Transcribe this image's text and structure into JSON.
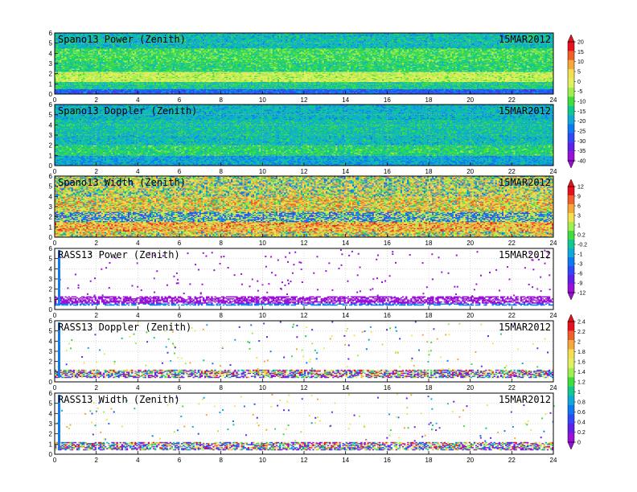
{
  "chart_data": [
    {
      "type": "heatmap",
      "title": "Spano13 Power (Zenith)",
      "date": "15MAR2012",
      "xlim": [
        0,
        24
      ],
      "ylim": [
        0,
        6
      ],
      "xticks": [
        "0",
        "2",
        "4",
        "6",
        "8",
        "10",
        "12",
        "14",
        "16",
        "18",
        "20",
        "22",
        "24"
      ],
      "yticks": [
        "0",
        "1",
        "2",
        "3",
        "4",
        "5",
        "6"
      ],
      "colorbar_group": 0,
      "field_bands": [
        {
          "z0": 0.0,
          "z1": 0.5,
          "value": -25
        },
        {
          "z0": 0.5,
          "z1": 1.2,
          "value": -12
        },
        {
          "z0": 1.2,
          "z1": 2.2,
          "value": 0
        },
        {
          "z0": 2.2,
          "z1": 3.2,
          "value": -10
        },
        {
          "z0": 3.2,
          "z1": 4.5,
          "value": -8
        },
        {
          "z0": 4.5,
          "z1": 6.0,
          "value": -15
        }
      ]
    },
    {
      "type": "heatmap",
      "title": "Spano13 Doppler (Zenith)",
      "date": "15MAR2012",
      "xlim": [
        0,
        24
      ],
      "ylim": [
        0,
        6
      ],
      "xticks": [
        "0",
        "2",
        "4",
        "6",
        "8",
        "10",
        "12",
        "14",
        "16",
        "18",
        "20",
        "22",
        "24"
      ],
      "yticks": [
        "0",
        "1",
        "2",
        "3",
        "4",
        "5",
        "6"
      ],
      "colorbar_group": 0,
      "field_bands": [
        {
          "z0": 0.0,
          "z1": 1.0,
          "value": -18
        },
        {
          "z0": 1.0,
          "z1": 2.0,
          "value": -10
        },
        {
          "z0": 2.0,
          "z1": 3.0,
          "value": -15
        },
        {
          "z0": 3.0,
          "z1": 4.5,
          "value": -14
        },
        {
          "z0": 4.5,
          "z1": 6.0,
          "value": -16
        }
      ]
    },
    {
      "type": "heatmap",
      "title": "Spano13 Width (Zenith)",
      "date": "15MAR2012",
      "xlim": [
        0,
        24
      ],
      "ylim": [
        0,
        6
      ],
      "xticks": [
        "0",
        "2",
        "4",
        "6",
        "8",
        "10",
        "12",
        "14",
        "16",
        "18",
        "20",
        "22",
        "24"
      ],
      "yticks": [
        "0",
        "1",
        "2",
        "3",
        "4",
        "5",
        "6"
      ],
      "colorbar_group": 1,
      "field_bands": [
        {
          "z0": 0.0,
          "z1": 0.6,
          "value": 4
        },
        {
          "z0": 0.6,
          "z1": 1.5,
          "value": 7
        },
        {
          "z0": 1.5,
          "z1": 2.5,
          "value": 0
        },
        {
          "z0": 2.5,
          "z1": 4.0,
          "value": 5
        },
        {
          "z0": 4.0,
          "z1": 6.0,
          "value": 3
        }
      ]
    },
    {
      "type": "heatmap",
      "title": "RASS13 Power (Zenith)",
      "date": "15MAR2012",
      "xlim": [
        0,
        24
      ],
      "ylim": [
        0,
        6
      ],
      "xticks": [
        "0",
        "2",
        "4",
        "6",
        "8",
        "10",
        "12",
        "14",
        "16",
        "18",
        "20",
        "22",
        "24"
      ],
      "yticks": [
        "0",
        "1",
        "2",
        "3",
        "4",
        "5",
        "6"
      ],
      "colorbar_group": 1,
      "field_bands": [
        {
          "z0": 0.4,
          "z1": 0.6,
          "value": -2
        },
        {
          "z0": 0.6,
          "z1": 1.3,
          "value": -11
        }
      ]
    },
    {
      "type": "heatmap",
      "title": "RASS13 Doppler (Zenith)",
      "date": "15MAR2012",
      "xlim": [
        0,
        24
      ],
      "ylim": [
        0,
        6
      ],
      "xticks": [
        "0",
        "2",
        "4",
        "6",
        "8",
        "10",
        "12",
        "14",
        "16",
        "18",
        "20",
        "22",
        "24"
      ],
      "yticks": [
        "0",
        "1",
        "2",
        "3",
        "4",
        "5",
        "6"
      ],
      "colorbar_group": 2,
      "field_bands": [
        {
          "z0": 0.4,
          "z1": 0.6,
          "value": 0.7
        },
        {
          "z0": 0.6,
          "z1": 1.2,
          "value": 1.2
        }
      ]
    },
    {
      "type": "heatmap",
      "title": "RASS13 Width (Zenith)",
      "date": "15MAR2012",
      "xlim": [
        0,
        24
      ],
      "ylim": [
        0,
        6
      ],
      "xticks": [
        "0",
        "2",
        "4",
        "6",
        "8",
        "10",
        "12",
        "14",
        "16",
        "18",
        "20",
        "22",
        "24"
      ],
      "yticks": [
        "0",
        "1",
        "2",
        "3",
        "4",
        "5",
        "6"
      ],
      "colorbar_group": 2,
      "field_bands": [
        {
          "z0": 0.4,
          "z1": 0.6,
          "value": 0.7
        },
        {
          "z0": 0.6,
          "z1": 1.2,
          "value": 1.2
        }
      ]
    }
  ],
  "colorbars": [
    {
      "labels": [
        "20",
        "15",
        "10",
        "5",
        "0",
        "-5",
        "-10",
        "-15",
        "-20",
        "-25",
        "-30",
        "-35",
        "-40"
      ],
      "colors": [
        "#e8101e",
        "#f0602a",
        "#f6a83a",
        "#f2e050",
        "#e2f060",
        "#a0ee50",
        "#40dc40",
        "#10c890",
        "#10a8d8",
        "#1078f0",
        "#3048f8",
        "#6020e8",
        "#9a10d8"
      ]
    },
    {
      "labels": [
        "12",
        "9",
        "6",
        "3",
        "1",
        "0.2",
        "-0.2",
        "-1",
        "-3",
        "-6",
        "-9",
        "-12"
      ],
      "colors": [
        "#e8101e",
        "#f0602a",
        "#f6a83a",
        "#f2e050",
        "#a0ee50",
        "#40dc40",
        "#10c890",
        "#10a8d8",
        "#1078f0",
        "#3048f8",
        "#6020e8",
        "#9a10d8"
      ]
    },
    {
      "labels": [
        "2.4",
        "2.2",
        "2",
        "1.8",
        "1.6",
        "1.4",
        "1.2",
        "1",
        "0.8",
        "0.6",
        "0.4",
        "0.2",
        "0"
      ],
      "colors": [
        "#e8101e",
        "#f0602a",
        "#f6a83a",
        "#f2e050",
        "#e2f060",
        "#a0ee50",
        "#40dc40",
        "#10c890",
        "#10a8d8",
        "#1078f0",
        "#3048f8",
        "#6020e8",
        "#9a10d8"
      ]
    }
  ]
}
